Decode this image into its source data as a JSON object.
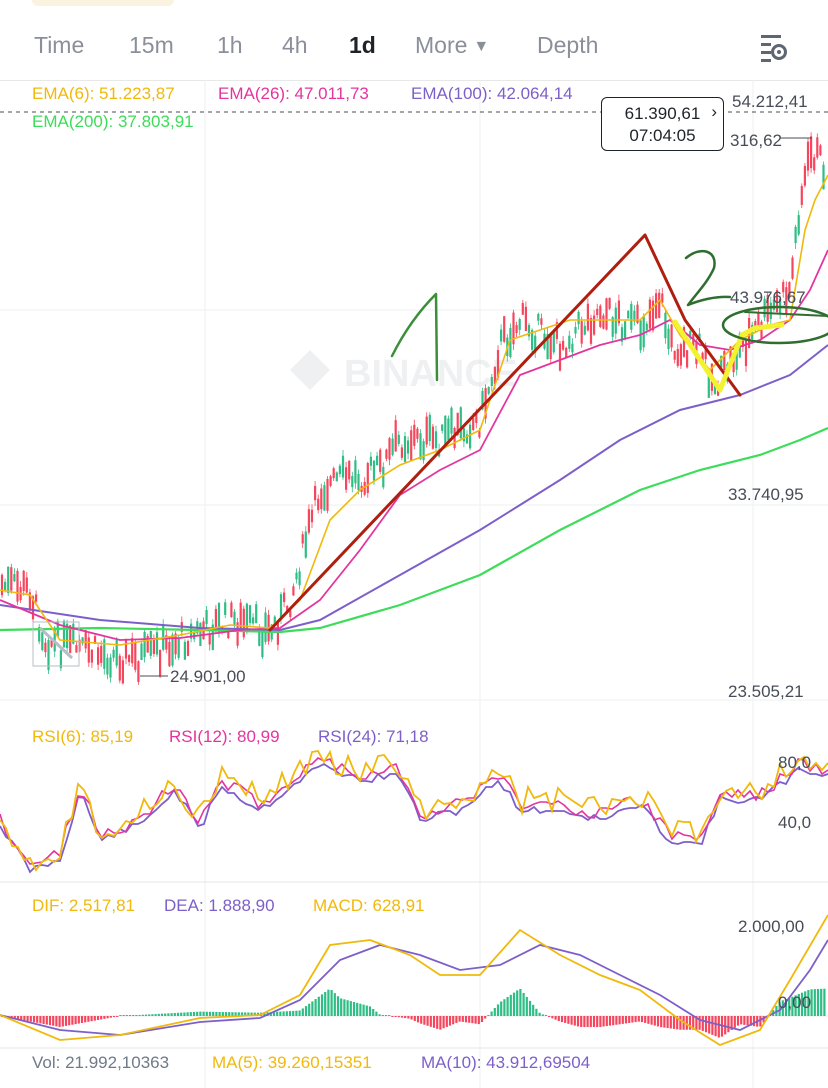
{
  "tabs": [
    {
      "label": "Time"
    },
    {
      "label": "15m"
    },
    {
      "label": "1h"
    },
    {
      "label": "4h"
    },
    {
      "label": "1d"
    },
    {
      "label": "More"
    },
    {
      "label": "Depth"
    }
  ],
  "active_tab": "1d",
  "ema_legend": {
    "ema6": "EMA(6): 51.223,87",
    "ema26": "EMA(26): 47.011,73",
    "ema100": "EMA(100): 42.064,14",
    "ema200": "EMA(200): 37.803,91"
  },
  "price_box": {
    "price": "61.390,61",
    "time": "07:04:05"
  },
  "price_axis": {
    "top": "54.212,41",
    "upper": "316,62",
    "mid_high": "43.976,67",
    "mid": "33.740,95",
    "bottom": "23.505,21",
    "low_marker": "24.901,00"
  },
  "watermark": "BINANCE",
  "rsi_legend": {
    "rsi6": "RSI(6): 85,19",
    "rsi12": "RSI(12): 80,99",
    "rsi24": "RSI(24): 71,18"
  },
  "rsi_axis": {
    "high": "80,0",
    "low": "40,0"
  },
  "macd_legend": {
    "dif": "DIF: 2.517,81",
    "dea": "DEA: 1.888,90",
    "macd": "MACD: 628,91"
  },
  "macd_axis": {
    "top": "2.000,00",
    "zero": "0,00"
  },
  "vol_legend": {
    "vol": "Vol: 21.992,10363",
    "ma5": "MA(5): 39.260,15351",
    "ma10": "MA(10): 43.912,69504"
  },
  "colors": {
    "ema6": "#f0b90b",
    "ema26": "#e3359f",
    "ema100": "#7d5fc9",
    "ema200": "#3ddc5a",
    "up": "#2ebd85",
    "down": "#f6465d",
    "annotation_red": "#b01e10",
    "annotation_yellow": "#f2f230",
    "annotation_green": "#2f6e2f"
  },
  "annotations": {
    "one": "1",
    "two": "2"
  }
}
